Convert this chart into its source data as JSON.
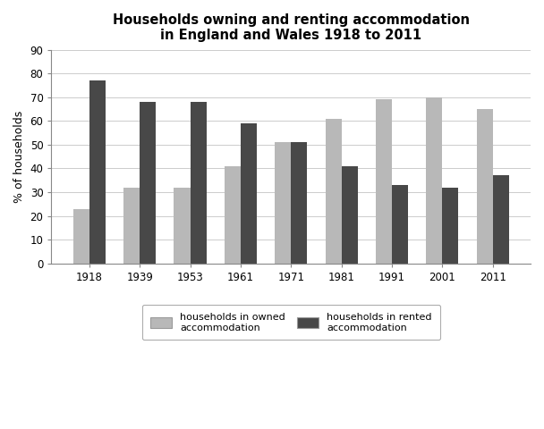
{
  "title_line1": "Households owning and renting accommodation",
  "title_line2": "in England and Wales 1918 to 2011",
  "years": [
    "1918",
    "1939",
    "1953",
    "1961",
    "1971",
    "1981",
    "1991",
    "2001",
    "2011"
  ],
  "owned": [
    23,
    32,
    32,
    41,
    51,
    61,
    69,
    70,
    65
  ],
  "rented": [
    77,
    68,
    68,
    59,
    51,
    41,
    33,
    32,
    37
  ],
  "owned_color": "#b8b8b8",
  "rented_color": "#484848",
  "ylabel": "% of households",
  "ylim": [
    0,
    90
  ],
  "yticks": [
    0,
    10,
    20,
    30,
    40,
    50,
    60,
    70,
    80,
    90
  ],
  "legend_owned": "households in owned\naccommodation",
  "legend_rented": "households in rented\naccommodation",
  "bar_width": 0.32,
  "background_color": "#ffffff",
  "title_fontsize": 10.5,
  "axis_fontsize": 9,
  "tick_fontsize": 8.5,
  "legend_fontsize": 8
}
